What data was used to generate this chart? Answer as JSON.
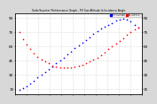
{
  "title": "Solar/Inverter Performance Graph - PV Sun Altitude & Incidence Angle",
  "bg_color": "#d8d8d8",
  "plot_bg": "#ffffff",
  "grid_color": "#bbbbbb",
  "xlim": [
    0,
    34
  ],
  "ylim": [
    10,
    95
  ],
  "yticks": [
    15,
    30,
    45,
    60,
    75,
    90
  ],
  "ytick_labels": [
    "15",
    "30",
    "45",
    "60",
    "75",
    "90"
  ],
  "sun_altitude_x": [
    1,
    2,
    3,
    4,
    5,
    6,
    7,
    8,
    9,
    10,
    11,
    12,
    13,
    14,
    15,
    16,
    17,
    18,
    19,
    20,
    21,
    22,
    23,
    24,
    25,
    26,
    27,
    28,
    29,
    30,
    31,
    32,
    33
  ],
  "sun_altitude_y": [
    14,
    16,
    18,
    21,
    24,
    27,
    30,
    33,
    36,
    39,
    42,
    45,
    48,
    52,
    55,
    58,
    61,
    64,
    67,
    70,
    73,
    76,
    79,
    81,
    83,
    85,
    87,
    88,
    89,
    88,
    86,
    83,
    80
  ],
  "incidence_x": [
    1,
    2,
    3,
    4,
    5,
    6,
    7,
    8,
    9,
    10,
    11,
    12,
    13,
    14,
    15,
    16,
    17,
    18,
    19,
    20,
    21,
    22,
    23,
    24,
    25,
    26,
    27,
    28,
    29,
    30,
    31,
    32,
    33
  ],
  "incidence_y": [
    75,
    68,
    62,
    57,
    53,
    49,
    46,
    44,
    42,
    40,
    39,
    38,
    38,
    38,
    38,
    39,
    40,
    41,
    42,
    44,
    46,
    48,
    51,
    54,
    57,
    60,
    63,
    66,
    69,
    72,
    75,
    78,
    80
  ],
  "dot_size": 1.2,
  "blue_color": "#0000ff",
  "red_color": "#ff0000"
}
